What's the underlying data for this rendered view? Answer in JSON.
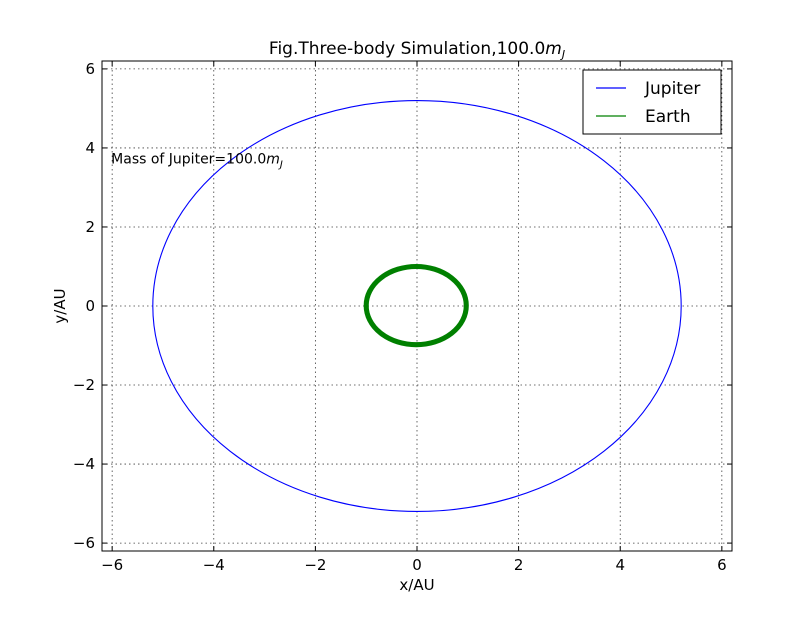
{
  "chart_data": {
    "type": "line",
    "title": "Fig.Three-body Simulation,100.0",
    "title_math": "m",
    "title_math_sub": "J",
    "xlabel": "x/AU",
    "ylabel": "y/AU",
    "xlim": [
      -6.2,
      6.2
    ],
    "ylim": [
      -6.2,
      6.2
    ],
    "xticks": [
      -6,
      -4,
      -2,
      0,
      2,
      4,
      6
    ],
    "yticks": [
      -6,
      -4,
      -2,
      0,
      2,
      4,
      6
    ],
    "xtick_labels": [
      "−6",
      "−4",
      "−2",
      "0",
      "2",
      "4",
      "6"
    ],
    "ytick_labels": [
      "−6",
      "−4",
      "−2",
      "0",
      "2",
      "4",
      "6"
    ],
    "grid": true,
    "legend_position": "top-right",
    "annotation": {
      "text": "Mass of Jupiter=100.0",
      "math": "m",
      "math_sub": "J",
      "x": -6.0,
      "y": 3.6
    },
    "series": [
      {
        "name": "Jupiter",
        "color": "#0000ff",
        "shape": "ellipse",
        "center": [
          0.0,
          0.0
        ],
        "x_extent": [
          -5.2,
          5.2
        ],
        "y_extent": [
          -5.2,
          5.2
        ]
      },
      {
        "name": "Earth",
        "color": "#008000",
        "shape": "ellipse",
        "center": [
          0.0,
          0.0
        ],
        "x_extent": [
          -1.0,
          0.97
        ],
        "y_extent": [
          -0.98,
          1.0
        ],
        "band_thickness_au": 0.1
      }
    ]
  }
}
